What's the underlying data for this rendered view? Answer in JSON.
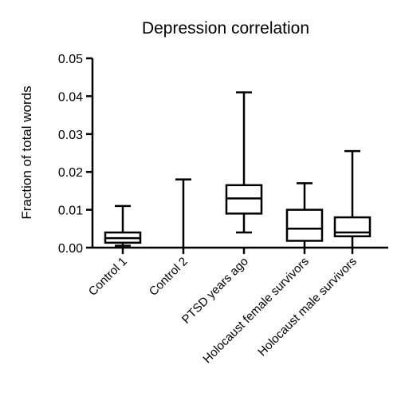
{
  "chart_data": {
    "type": "box",
    "title": "Depression correlation",
    "xlabel": "",
    "ylabel": "Fraction of total words",
    "ylim": [
      0,
      0.05
    ],
    "yticks": [
      "0.00",
      "0.01",
      "0.02",
      "0.03",
      "0.04",
      "0.05"
    ],
    "ytick_values": [
      0,
      0.01,
      0.02,
      0.03,
      0.04,
      0.05
    ],
    "grid": false,
    "categories": [
      "Control 1",
      "Control 2",
      "PTSD years ago",
      "Holocaust female survivors",
      "Holocaust male survivors"
    ],
    "boxes": [
      {
        "category": "Control 1",
        "min": 0.0005,
        "q1": 0.0013,
        "median": 0.0025,
        "q3": 0.004,
        "max": 0.011
      },
      {
        "category": "Control 2",
        "min": 0.0,
        "q1": 0.0,
        "median": 0.0,
        "q3": 0.0,
        "max": 0.018
      },
      {
        "category": "PTSD years ago",
        "min": 0.004,
        "q1": 0.009,
        "median": 0.013,
        "q3": 0.0165,
        "max": 0.041
      },
      {
        "category": "Holocaust female survivors",
        "min": 0.0,
        "q1": 0.0018,
        "median": 0.005,
        "q3": 0.01,
        "max": 0.017
      },
      {
        "category": "Holocaust male survivors",
        "min": 0.0,
        "q1": 0.003,
        "median": 0.004,
        "q3": 0.008,
        "max": 0.0255
      }
    ],
    "colors": {
      "line": "#000000",
      "background": "#ffffff"
    }
  }
}
